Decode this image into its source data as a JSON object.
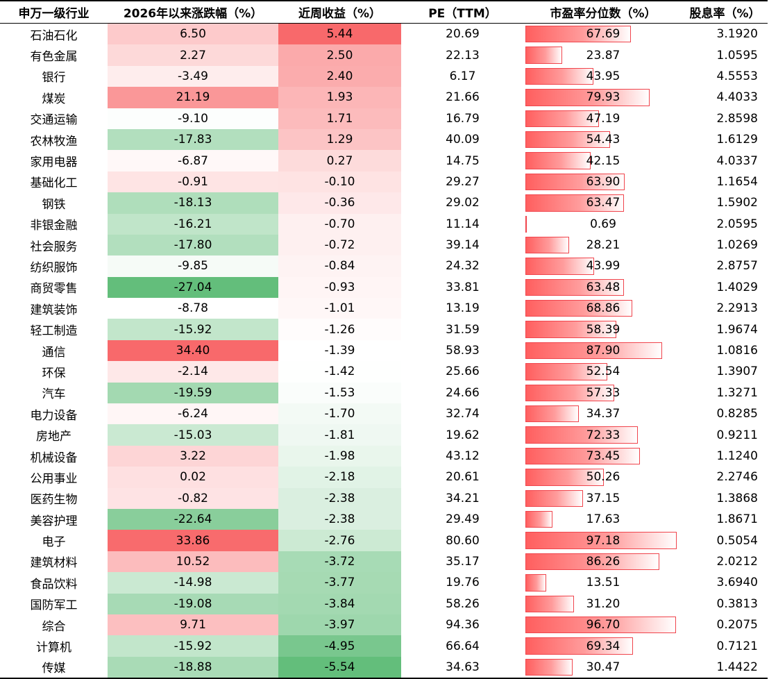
{
  "headers": [
    "申万一级行业",
    "2026年以来涨跌幅（%）",
    "近周收益（%）",
    "PE（TTM）",
    "市盈率分位数（%）",
    "股息率（%）"
  ],
  "rows": [
    {
      "industry": "石油石化",
      "ytd": "6.50",
      "weekly": "5.44",
      "pe": "20.69",
      "pct": "67.69",
      "div": "3.1920"
    },
    {
      "industry": "有色金属",
      "ytd": "2.27",
      "weekly": "2.50",
      "pe": "22.13",
      "pct": "23.87",
      "div": "1.0595"
    },
    {
      "industry": "银行",
      "ytd": "-3.49",
      "weekly": "2.40",
      "pe": "6.17",
      "pct": "43.95",
      "div": "4.5553"
    },
    {
      "industry": "煤炭",
      "ytd": "21.19",
      "weekly": "1.93",
      "pe": "21.66",
      "pct": "79.93",
      "div": "4.4033"
    },
    {
      "industry": "交通运输",
      "ytd": "-9.10",
      "weekly": "1.71",
      "pe": "16.79",
      "pct": "47.19",
      "div": "2.8598"
    },
    {
      "industry": "农林牧渔",
      "ytd": "-17.83",
      "weekly": "1.29",
      "pe": "40.09",
      "pct": "54.43",
      "div": "1.6129"
    },
    {
      "industry": "家用电器",
      "ytd": "-6.87",
      "weekly": "0.27",
      "pe": "14.75",
      "pct": "42.15",
      "div": "4.0337"
    },
    {
      "industry": "基础化工",
      "ytd": "-0.91",
      "weekly": "-0.10",
      "pe": "29.27",
      "pct": "63.90",
      "div": "1.1654"
    },
    {
      "industry": "钢铁",
      "ytd": "-18.13",
      "weekly": "-0.36",
      "pe": "29.02",
      "pct": "63.47",
      "div": "1.5902"
    },
    {
      "industry": "非银金融",
      "ytd": "-16.21",
      "weekly": "-0.70",
      "pe": "11.14",
      "pct": "0.69",
      "div": "2.0595"
    },
    {
      "industry": "社会服务",
      "ytd": "-17.80",
      "weekly": "-0.72",
      "pe": "39.14",
      "pct": "28.21",
      "div": "1.0269"
    },
    {
      "industry": "纺织服饰",
      "ytd": "-9.85",
      "weekly": "-0.84",
      "pe": "24.32",
      "pct": "43.99",
      "div": "2.8757"
    },
    {
      "industry": "商贸零售",
      "ytd": "-27.04",
      "weekly": "-0.93",
      "pe": "33.81",
      "pct": "63.48",
      "div": "1.4029"
    },
    {
      "industry": "建筑装饰",
      "ytd": "-8.78",
      "weekly": "-1.01",
      "pe": "13.19",
      "pct": "68.86",
      "div": "2.2913"
    },
    {
      "industry": "轻工制造",
      "ytd": "-15.92",
      "weekly": "-1.26",
      "pe": "31.59",
      "pct": "58.39",
      "div": "1.9674"
    },
    {
      "industry": "通信",
      "ytd": "34.40",
      "weekly": "-1.39",
      "pe": "58.93",
      "pct": "87.90",
      "div": "1.0816"
    },
    {
      "industry": "环保",
      "ytd": "-2.14",
      "weekly": "-1.42",
      "pe": "25.66",
      "pct": "52.54",
      "div": "1.3907"
    },
    {
      "industry": "汽车",
      "ytd": "-19.59",
      "weekly": "-1.53",
      "pe": "24.66",
      "pct": "57.33",
      "div": "1.3271"
    },
    {
      "industry": "电力设备",
      "ytd": "-6.24",
      "weekly": "-1.70",
      "pe": "32.74",
      "pct": "34.37",
      "div": "0.8285"
    },
    {
      "industry": "房地产",
      "ytd": "-15.03",
      "weekly": "-1.81",
      "pe": "19.62",
      "pct": "72.33",
      "div": "0.9211"
    },
    {
      "industry": "机械设备",
      "ytd": "3.22",
      "weekly": "-1.98",
      "pe": "43.12",
      "pct": "73.45",
      "div": "1.1240"
    },
    {
      "industry": "公用事业",
      "ytd": "0.02",
      "weekly": "-2.18",
      "pe": "20.61",
      "pct": "50.26",
      "div": "2.2746"
    },
    {
      "industry": "医药生物",
      "ytd": "-0.82",
      "weekly": "-2.38",
      "pe": "34.21",
      "pct": "37.15",
      "div": "1.3868"
    },
    {
      "industry": "美容护理",
      "ytd": "-22.64",
      "weekly": "-2.38",
      "pe": "29.49",
      "pct": "17.63",
      "div": "1.8671"
    },
    {
      "industry": "电子",
      "ytd": "33.86",
      "weekly": "-2.76",
      "pe": "80.60",
      "pct": "97.18",
      "div": "0.5054"
    },
    {
      "industry": "建筑材料",
      "ytd": "10.52",
      "weekly": "-3.72",
      "pe": "35.17",
      "pct": "86.26",
      "div": "2.0212"
    },
    {
      "industry": "食品饮料",
      "ytd": "-14.98",
      "weekly": "-3.77",
      "pe": "19.76",
      "pct": "13.51",
      "div": "3.6940"
    },
    {
      "industry": "国防军工",
      "ytd": "-19.08",
      "weekly": "-3.84",
      "pe": "58.26",
      "pct": "31.20",
      "div": "0.3813"
    },
    {
      "industry": "综合",
      "ytd": "9.71",
      "weekly": "-3.97",
      "pe": "94.36",
      "pct": "96.70",
      "div": "0.2075"
    },
    {
      "industry": "计算机",
      "ytd": "-15.92",
      "weekly": "-4.95",
      "pe": "66.64",
      "pct": "69.34",
      "div": "0.7121"
    },
    {
      "industry": "传媒",
      "ytd": "-18.88",
      "weekly": "-5.54",
      "pe": "34.63",
      "pct": "30.47",
      "div": "1.4422"
    }
  ],
  "colors": {
    "positive_max": "#f8696b",
    "negative_max": "#63be7b",
    "neutral": "#ffffff",
    "bar_fill": "#ff5f5f",
    "bar_border": "#f0444c"
  },
  "icons": []
}
